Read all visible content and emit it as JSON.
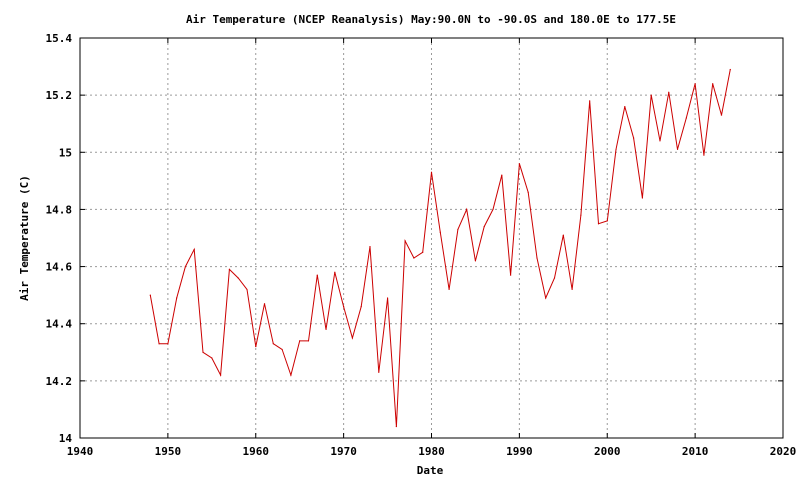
{
  "chart_data": {
    "type": "line",
    "title": "Air Temperature (NCEP Reanalysis) May:90.0N to -90.0S and 180.0E to 177.5E",
    "xlabel": "Date",
    "ylabel": "Air Temperature (C)",
    "xlim": [
      1940,
      2020
    ],
    "ylim": [
      14,
      15.4
    ],
    "x_ticks": [
      1940,
      1950,
      1960,
      1970,
      1980,
      1990,
      2000,
      2010,
      2020
    ],
    "y_ticks": [
      14,
      14.2,
      14.4,
      14.6,
      14.8,
      15,
      15.2,
      15.4
    ],
    "x_tick_labels": [
      "1940",
      "1950",
      "1960",
      "1970",
      "1980",
      "1990",
      "2000",
      "2010",
      "2020"
    ],
    "y_tick_labels": [
      "14",
      "14.2",
      "14.4",
      "14.6",
      "14.8",
      "15",
      "15.2",
      "15.4"
    ],
    "grid": true,
    "line_color": "#cc0000",
    "series": [
      {
        "x": [
          1948,
          1949,
          1950,
          1951,
          1952,
          1953,
          1954,
          1955,
          1956,
          1957,
          1958,
          1959,
          1960,
          1961,
          1962,
          1963,
          1964,
          1965,
          1966,
          1967,
          1968,
          1969,
          1970,
          1971,
          1972,
          1973,
          1974,
          1975,
          1976,
          1977,
          1978,
          1979,
          1980,
          1981,
          1982,
          1983,
          1984,
          1985,
          1986,
          1987,
          1988,
          1989,
          1990,
          1991,
          1992,
          1993,
          1994,
          1995,
          1996,
          1997,
          1998,
          1999,
          2000,
          2001,
          2002,
          2003,
          2004,
          2005,
          2006,
          2007,
          2008,
          2009,
          2010,
          2011,
          2012,
          2013,
          2014
        ],
        "values": [
          14.5,
          14.33,
          14.33,
          14.49,
          14.6,
          14.66,
          14.3,
          14.28,
          14.22,
          14.59,
          14.56,
          14.52,
          14.32,
          14.47,
          14.33,
          14.31,
          14.22,
          14.34,
          14.34,
          14.57,
          14.38,
          14.58,
          14.46,
          14.35,
          14.46,
          14.67,
          14.23,
          14.49,
          14.04,
          14.69,
          14.63,
          14.65,
          14.93,
          14.72,
          14.52,
          14.73,
          14.8,
          14.62,
          14.74,
          14.8,
          14.92,
          14.57,
          14.96,
          14.86,
          14.63,
          14.49,
          14.56,
          14.71,
          14.52,
          14.78,
          15.18,
          14.75,
          14.76,
          15.01,
          15.16,
          15.05,
          14.84,
          15.2,
          15.04,
          15.21,
          15.01,
          15.12,
          15.24,
          14.99,
          15.24,
          15.13,
          15.29
        ]
      }
    ]
  }
}
